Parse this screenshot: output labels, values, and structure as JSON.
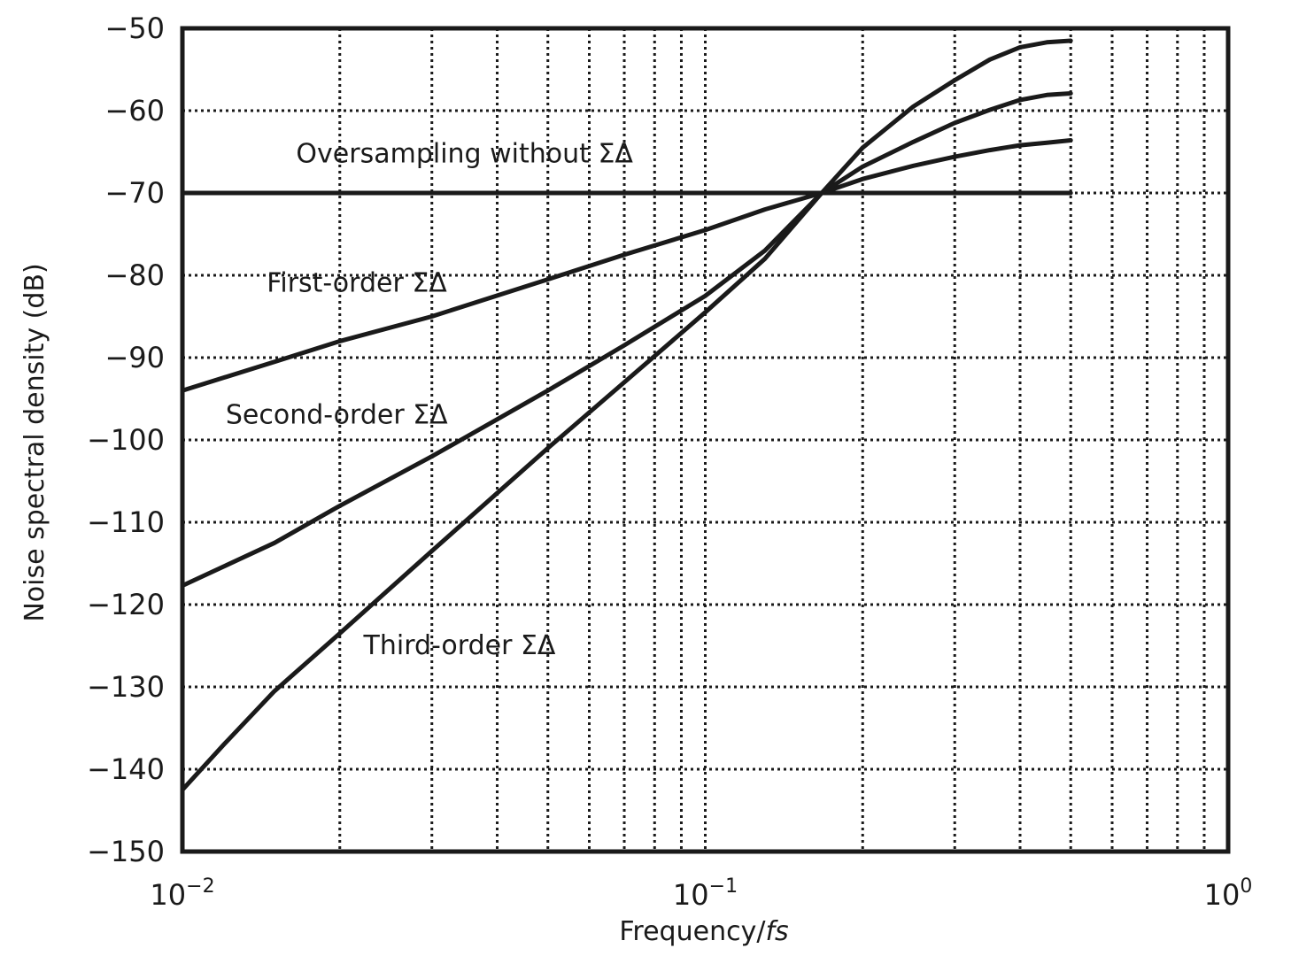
{
  "chart_data": {
    "type": "line",
    "title": "",
    "xlabel": "Frequency/",
    "xlabel_italic": "fs",
    "ylabel": "Noise spectral density (dB)",
    "xscale": "log",
    "xlim": [
      0.01,
      1
    ],
    "ylim": [
      -150,
      -50
    ],
    "grid": true,
    "x_ticks": [
      {
        "value": 0.01,
        "base": "10",
        "exp": "−2"
      },
      {
        "value": 0.1,
        "base": "10",
        "exp": "−1"
      },
      {
        "value": 1,
        "base": "10",
        "exp": "0"
      }
    ],
    "y_ticks": [
      {
        "value": -50,
        "label": "−50"
      },
      {
        "value": -60,
        "label": "−60"
      },
      {
        "value": -70,
        "label": "−70"
      },
      {
        "value": -80,
        "label": "−80"
      },
      {
        "value": -90,
        "label": "−90"
      },
      {
        "value": -100,
        "label": "−100"
      },
      {
        "value": -110,
        "label": "−110"
      },
      {
        "value": -120,
        "label": "−120"
      },
      {
        "value": -130,
        "label": "−130"
      },
      {
        "value": -140,
        "label": "−140"
      },
      {
        "value": -150,
        "label": "−150"
      }
    ],
    "series": [
      {
        "name": "Oversampling without ΣΔ",
        "x": [
          0.01,
          0.5
        ],
        "y": [
          -70,
          -70
        ]
      },
      {
        "name": "First-order ΣΔ",
        "x": [
          0.01,
          0.015,
          0.02,
          0.03,
          0.05,
          0.07,
          0.1,
          0.13,
          0.167,
          0.2,
          0.25,
          0.3,
          0.35,
          0.4,
          0.45,
          0.5
        ],
        "y": [
          -94,
          -90.5,
          -88,
          -85,
          -80.5,
          -77.5,
          -74.5,
          -72,
          -70,
          -68.3,
          -66.7,
          -65.6,
          -64.8,
          -64.2,
          -63.9,
          -63.6
        ]
      },
      {
        "name": "Second-order ΣΔ",
        "x": [
          0.01,
          0.015,
          0.02,
          0.03,
          0.05,
          0.07,
          0.1,
          0.13,
          0.167,
          0.2,
          0.25,
          0.3,
          0.35,
          0.4,
          0.45,
          0.5
        ],
        "y": [
          -117.7,
          -112.5,
          -108,
          -102,
          -94,
          -88.5,
          -82.5,
          -77,
          -70,
          -66.8,
          -63.8,
          -61.5,
          -59.9,
          -58.7,
          -58.1,
          -57.9
        ]
      },
      {
        "name": "Third-order ΣΔ",
        "x": [
          0.01,
          0.012,
          0.015,
          0.02,
          0.03,
          0.05,
          0.07,
          0.1,
          0.13,
          0.167,
          0.2,
          0.25,
          0.3,
          0.35,
          0.4,
          0.45,
          0.5
        ],
        "y": [
          -142.5,
          -137,
          -130.5,
          -123.5,
          -113.5,
          -101,
          -93,
          -84.5,
          -78,
          -70,
          -64.5,
          -59.5,
          -56.3,
          -53.8,
          -52.3,
          -51.7,
          -51.5
        ]
      }
    ],
    "annotations": [
      {
        "text": "Oversampling without ΣΔ",
        "at_x": 0.0165,
        "at_y": -66.3
      },
      {
        "text": "First-order ΣΔ",
        "at_x": 0.0145,
        "at_y": -82
      },
      {
        "text": "Second-order ΣΔ",
        "at_x": 0.0121,
        "at_y": -98
      },
      {
        "text": "Third-order ΣΔ",
        "at_x": 0.0222,
        "at_y": -126
      }
    ]
  }
}
